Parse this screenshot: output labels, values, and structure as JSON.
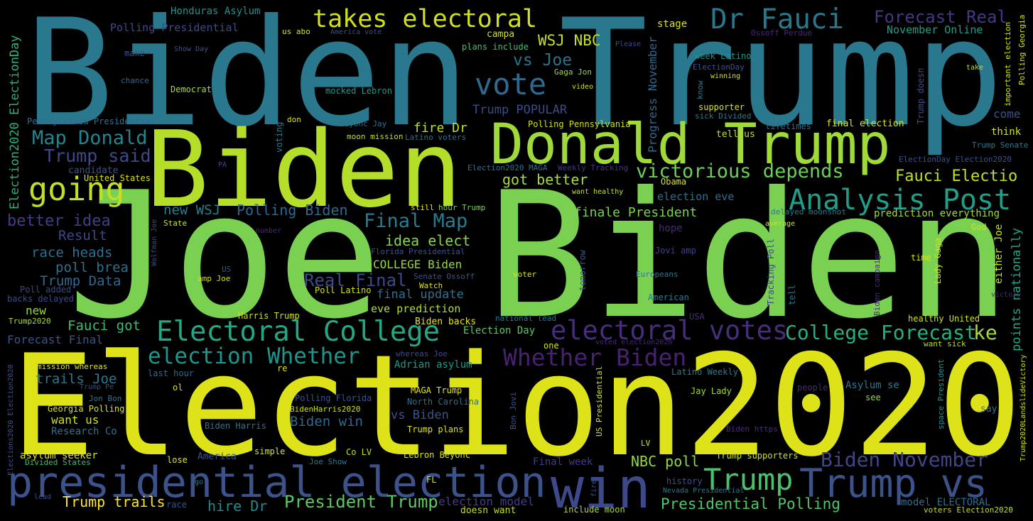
{
  "words": [
    "Biden Trump",
    "Joe Biden",
    "Election2020",
    "Biden",
    "Donald Trump",
    "presidential election",
    "win",
    "Trump vs",
    "Trump",
    "Electoral College",
    "electoral votes",
    "College Forecast",
    "ke",
    "Analysis Post",
    "Dr Fauci",
    "vote",
    "takes electoral",
    "going",
    "Whether Biden",
    "election Whether",
    "victorious depends",
    "Biden November",
    "Forecast Real",
    "Map Donald",
    "Trump said",
    "vs Joe",
    "WSJ NBC",
    "Final Map",
    "Real Final",
    "Fauci Electio",
    "Presidential Polling",
    "President Trump",
    "NBC poll",
    "Trump trails",
    "hire Dr",
    "Polling Biden",
    "new WSJ",
    "better idea",
    "Result",
    "race heads",
    "poll brea",
    "Trump Data",
    "new",
    "Fauci got",
    "Forecast Final",
    "trails Joe",
    "want us",
    "Research Co",
    "asylum seeker",
    "Trump POPULAR",
    "fire Dr",
    "got better",
    "finale President",
    "idea elect",
    "COLLEGE Biden",
    "final update",
    "eve prediction",
    "Biden backs",
    "Adrian asylum",
    "vs Biden",
    "Biden win",
    "Election Day",
    "election model",
    "doesn want",
    "include moon",
    "Final week",
    "model ELECTORAL",
    "points nationally",
    "either Joe",
    "Progress November",
    "Election2020 ElectionDay",
    "hope",
    "election eve",
    "Jovi amp",
    "American",
    "prediction everything",
    "Asylum se",
    "see",
    "say",
    "come",
    "think",
    "Trump Senate",
    "November Online",
    "stage",
    "Honduras Asylum",
    "Polling Presidential",
    "make",
    "chance",
    "Democrat",
    "Show Day",
    "campa",
    "plans include",
    "mocked Lebron",
    "America vote",
    "us abo",
    "Beyonc Jay",
    "moon mission",
    "Latino voters",
    "Polling Pennsylvania",
    "Gaga Jon",
    "week Latino",
    "ElectionDay",
    "winning",
    "supporter",
    "sick Divided",
    "tell us",
    "lifetimes",
    "final election",
    "ElectionDay Election2020",
    "Ossoff Perdue",
    "Please",
    "take",
    "video",
    "Watch",
    "Poll Latino",
    "Senate Ossoff",
    "Florida Presidential",
    "still",
    "hour Trump",
    "Obama",
    "want healthy",
    "Weekly Tracking",
    "Election2020 MAGA",
    "United States",
    "candidate",
    "Pennsylvania Presidential",
    "don",
    "State",
    "number",
    "Wolfman Joe",
    "US",
    "amp Joe",
    "Poll added",
    "backs delayed",
    "Trump2020",
    "Harris Trump",
    "mission whereas",
    "Trump Pe",
    "Jon Bon",
    "Georgia Polling",
    "last hour",
    "ol",
    "Biden Harris",
    "simple",
    "America",
    "lose",
    "Joe Show",
    "Co LV",
    "Lebron Beyonc",
    "Trump plans",
    "MAGA Trump",
    "North Carolina",
    "Polling Florida",
    "BidenHarris2020",
    "whereas Joe",
    "re",
    "one",
    "national lead",
    "voted election2020",
    "Latino Weekly",
    "Jay Lady",
    "people",
    "USA",
    "healthy United",
    "want sick",
    "Biden https",
    "LV",
    "Trump supporters",
    "history",
    "Nevada Presidential",
    "voters Election2020",
    "FL",
    "go",
    "race",
    "lead",
    "Divided States",
    "voter",
    "Europeans",
    "delayed moonshot",
    "average",
    "God",
    "time",
    "PA",
    "Tracking Poll",
    "tell",
    "Lady Gaga",
    "Biden campaign",
    "space President",
    "Trump doesn",
    "important election",
    "Polling Georgia",
    "know",
    "voting",
    "tomorrow",
    "US Presidential",
    "Bon Jovi",
    "fire",
    "Elections2020 Election2020",
    "Trump2020LandslideVictory",
    "victory"
  ]
}
